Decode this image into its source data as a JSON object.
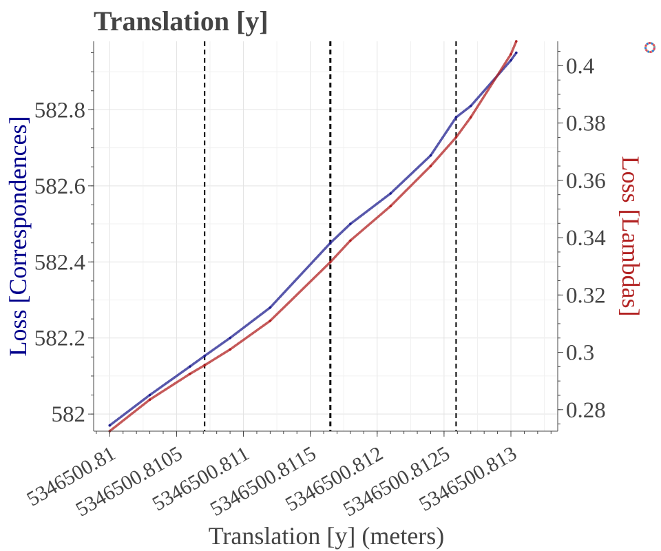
{
  "chart_data": {
    "type": "scatter",
    "title": "Translation [y]",
    "xlabel": "Translation [y] (meters)",
    "ylabel_left": "Loss [Correspondences]",
    "ylabel_right": "Loss [Lambdas]",
    "x_offset": 5346500,
    "xlim_offset": [
      0.80988,
      0.81335
    ],
    "ylim_left": [
      581.955,
      582.98
    ],
    "ylim_right": [
      0.2725,
      0.4085
    ],
    "x_ticks": [
      0.81,
      0.8105,
      0.811,
      0.8115,
      0.812,
      0.8125,
      0.813
    ],
    "x_tick_labels": [
      "5346500.81",
      "5346500.8105",
      "5346500.811",
      "5346500.8115",
      "5346500.812",
      "5346500.8125",
      "5346500.813"
    ],
    "y_left_ticks": [
      582,
      582.2,
      582.4,
      582.6,
      582.8
    ],
    "y_left_tick_labels": [
      "582",
      "582.2",
      "582.4",
      "582.6",
      "582.8"
    ],
    "y_right_ticks": [
      0.28,
      0.3,
      0.32,
      0.34,
      0.36,
      0.38,
      0.4
    ],
    "y_right_tick_labels": [
      "0.28",
      "0.3",
      "0.32",
      "0.34",
      "0.36",
      "0.38",
      "0.4"
    ],
    "vlines": [
      0.81071,
      0.81165,
      0.81259
    ],
    "grid": true,
    "series": [
      {
        "axis": "left",
        "color": "#1f1f8f",
        "x": [
          0.81,
          0.8103,
          0.8106,
          0.81071,
          0.8109,
          0.8112,
          0.81165,
          0.8118,
          0.8121,
          0.8124,
          0.81259,
          0.8127,
          0.813,
          0.81304
        ],
        "y": [
          581.97,
          582.05,
          582.125,
          582.153,
          582.2,
          582.28,
          582.45,
          582.5,
          582.58,
          582.68,
          582.78,
          582.81,
          582.93,
          582.95
        ]
      },
      {
        "axis": "right",
        "color": "#b22222",
        "x": [
          0.81,
          0.8103,
          0.8106,
          0.81071,
          0.8109,
          0.8112,
          0.81165,
          0.8118,
          0.8121,
          0.8124,
          0.81259,
          0.8127,
          0.813,
          0.81304
        ],
        "y": [
          0.2725,
          0.2835,
          0.2925,
          0.2955,
          0.301,
          0.311,
          0.3315,
          0.339,
          0.351,
          0.365,
          0.375,
          0.382,
          0.404,
          0.4085
        ]
      }
    ]
  },
  "colors": {
    "left_axis_label": "#00008b",
    "right_axis_label": "#b22222",
    "text": "#444444",
    "grid": "#e3e3e3",
    "vline": "#000000"
  },
  "icons": {
    "logo": "plotly-style-logo-icon"
  }
}
